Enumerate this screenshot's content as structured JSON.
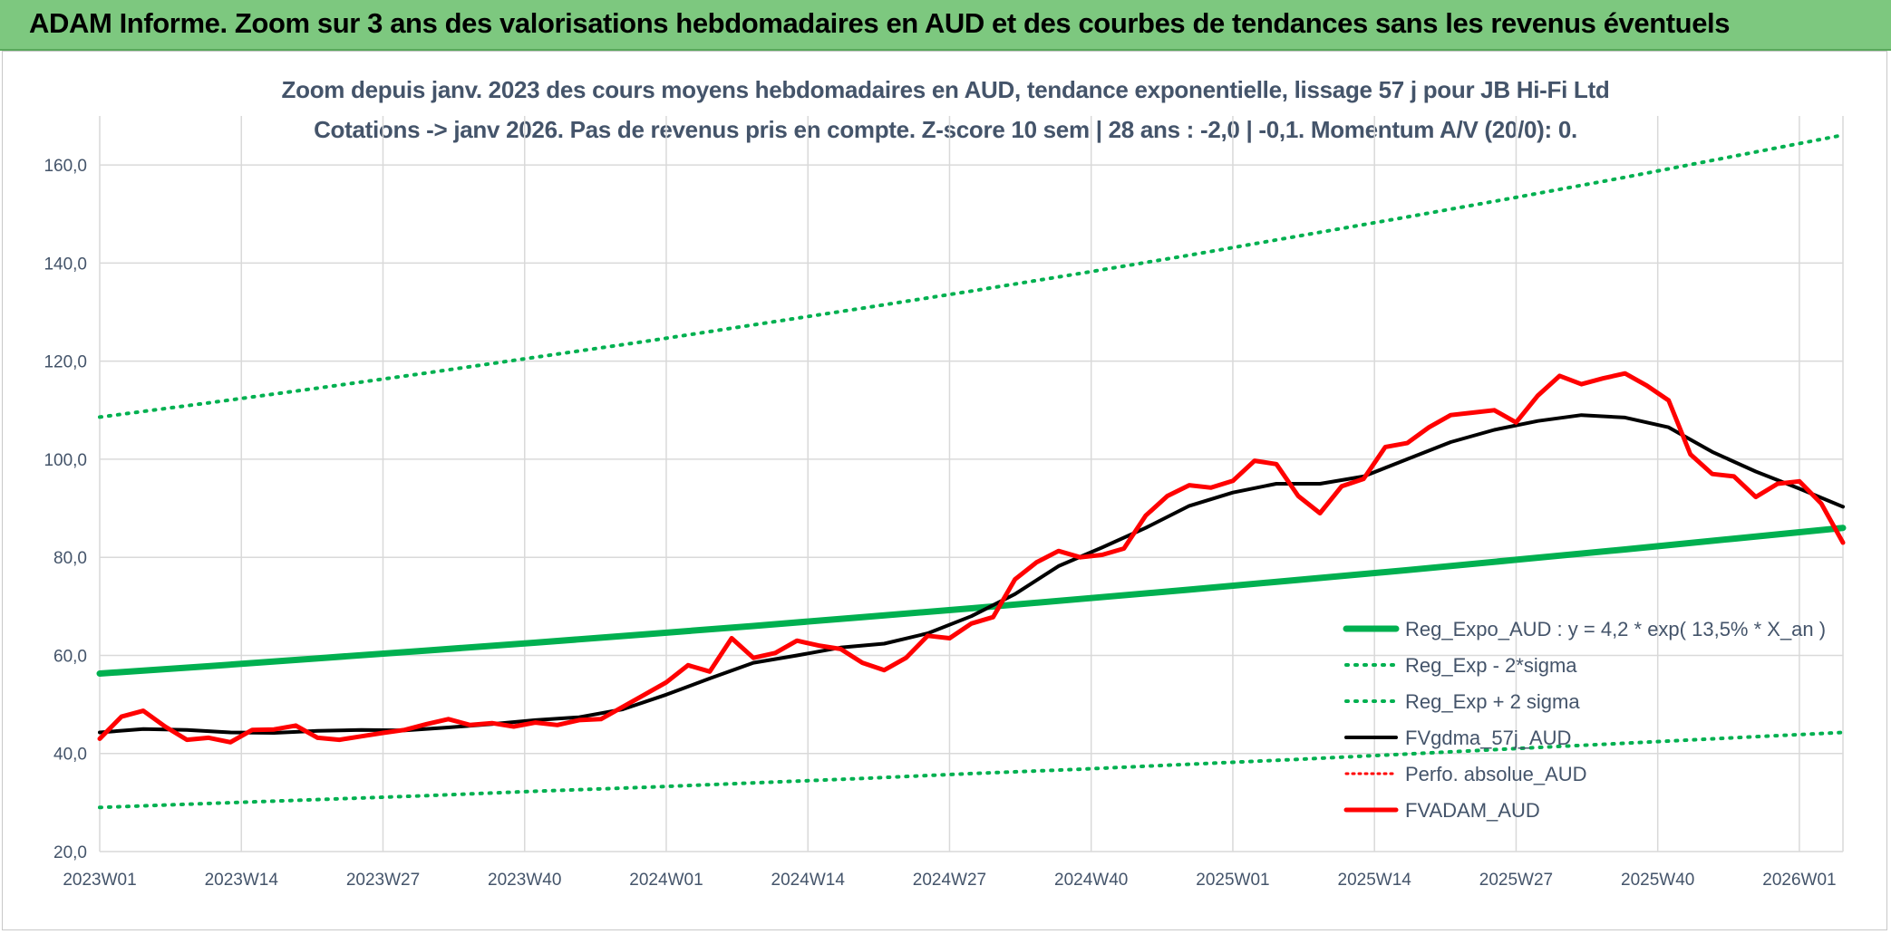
{
  "banner": {
    "title": "ADAM Informe. Zoom sur 3 ans des valorisations hebdomadaires en AUD et des courbes de tendances sans les revenus éventuels"
  },
  "chart_title": {
    "line1": "Zoom depuis janv. 2023 des cours moyens hebdomadaires en AUD, tendance exponentielle, lissage 57 j pour JB Hi-Fi Ltd",
    "line2": "Cotations -> janv 2026. Pas de revenus pris en compte. Z-score 10 sem | 28 ans : -2,0 | -0,1. Momentum A/V (20/0): 0."
  },
  "colors": {
    "trend": "#00b050",
    "band": "#00b050",
    "smooth": "#000000",
    "price": "#ff0000",
    "perfo": "#ff0000",
    "grid": "#d9d9d9",
    "text": "#44546a"
  },
  "chart_data": {
    "type": "line",
    "x_tick_labels": [
      "2023W01",
      "2023W14",
      "2023W27",
      "2023W40",
      "2024W01",
      "2024W14",
      "2024W27",
      "2024W40",
      "2025W01",
      "2025W14",
      "2025W27",
      "2025W40",
      "2026W01"
    ],
    "x_tick_weeks": [
      0,
      13,
      26,
      39,
      52,
      65,
      78,
      91,
      104,
      117,
      130,
      143,
      156
    ],
    "x_range": [
      0,
      160
    ],
    "y_tick_labels": [
      "20,0",
      "40,0",
      "60,0",
      "80,0",
      "100,0",
      "120,0",
      "140,0",
      "160,0"
    ],
    "y_ticks": [
      20,
      40,
      60,
      80,
      100,
      120,
      140,
      160
    ],
    "ylim": [
      20,
      170
    ],
    "grid": true,
    "legend_position": "bottom-right",
    "series": [
      {
        "name": "Reg_Expo_AUD : y = 4,2 * exp( 13,5% *  X_an )",
        "style": "trend",
        "x": [
          0,
          10,
          20,
          30,
          40,
          50,
          60,
          70,
          80,
          90,
          100,
          110,
          120,
          130,
          140,
          150,
          160
        ],
        "y": [
          56.3,
          57.8,
          59.4,
          61.0,
          62.6,
          64.3,
          66.0,
          67.8,
          69.6,
          71.5,
          73.4,
          75.4,
          77.4,
          79.5,
          81.6,
          83.8,
          86.0
        ]
      },
      {
        "name": "Reg_Exp - 2*sigma",
        "style": "band",
        "x": [
          0,
          10,
          20,
          30,
          40,
          50,
          60,
          70,
          80,
          90,
          100,
          110,
          120,
          130,
          140,
          150,
          160
        ],
        "y": [
          29.0,
          29.8,
          30.6,
          31.4,
          32.3,
          33.1,
          34.0,
          34.9,
          35.9,
          36.8,
          37.8,
          38.8,
          39.9,
          41.0,
          42.1,
          43.2,
          44.3
        ]
      },
      {
        "name": "Reg_Exp + 2 sigma",
        "style": "band",
        "x": [
          0,
          10,
          20,
          30,
          40,
          50,
          60,
          70,
          80,
          90,
          100,
          110,
          120,
          130,
          140,
          150,
          160
        ],
        "y": [
          108.6,
          111.5,
          114.5,
          117.6,
          120.8,
          124.0,
          127.4,
          130.8,
          134.3,
          137.9,
          141.6,
          145.5,
          149.4,
          153.4,
          157.5,
          161.8,
          166.1
        ]
      },
      {
        "name": "FVgdma_57j_AUD",
        "style": "smooth",
        "x": [
          0,
          4,
          8,
          12,
          16,
          20,
          24,
          28,
          32,
          36,
          40,
          44,
          48,
          52,
          56,
          60,
          64,
          68,
          72,
          76,
          80,
          84,
          88,
          92,
          96,
          100,
          104,
          108,
          112,
          116,
          120,
          124,
          128,
          132,
          136,
          140,
          144,
          148,
          152,
          156,
          160
        ],
        "y": [
          44.3,
          45.0,
          44.8,
          44.3,
          44.2,
          44.6,
          44.8,
          44.7,
          45.3,
          46.0,
          46.8,
          47.4,
          49.0,
          52.0,
          55.3,
          58.5,
          60.0,
          61.6,
          62.4,
          64.5,
          68.0,
          72.5,
          78.2,
          82.0,
          86.0,
          90.5,
          93.2,
          95.0,
          95.0,
          96.5,
          100.0,
          103.5,
          106.0,
          107.8,
          109.0,
          108.5,
          106.5,
          101.5,
          97.5,
          94.0,
          90.3
        ]
      },
      {
        "name": "Perfo. absolue_AUD",
        "style": "perfo",
        "x": [],
        "y": []
      },
      {
        "name": "FVADAM_AUD",
        "style": "price",
        "x": [
          0,
          2,
          4,
          6,
          8,
          10,
          12,
          14,
          16,
          18,
          20,
          22,
          24,
          26,
          28,
          30,
          32,
          34,
          36,
          38,
          40,
          42,
          44,
          46,
          48,
          50,
          52,
          54,
          56,
          58,
          60,
          62,
          64,
          66,
          68,
          70,
          72,
          74,
          76,
          78,
          80,
          82,
          84,
          86,
          88,
          90,
          92,
          94,
          96,
          98,
          100,
          102,
          104,
          106,
          108,
          110,
          112,
          114,
          116,
          118,
          120,
          122,
          124,
          126,
          128,
          130,
          132,
          134,
          136,
          138,
          140,
          142,
          144,
          146,
          148,
          150,
          152,
          154,
          156,
          158,
          160
        ],
        "y": [
          43.0,
          47.5,
          48.7,
          45.5,
          42.8,
          43.2,
          42.3,
          44.8,
          44.9,
          45.7,
          43.2,
          42.8,
          43.5,
          44.2,
          44.8,
          46.0,
          47.0,
          45.8,
          46.2,
          45.5,
          46.3,
          45.8,
          46.8,
          47.0,
          49.5,
          52.0,
          54.5,
          58.0,
          56.7,
          63.5,
          59.5,
          60.5,
          63.0,
          62.0,
          61.3,
          58.5,
          57.0,
          59.5,
          64.0,
          63.5,
          66.5,
          67.8,
          75.5,
          79.0,
          81.3,
          80.0,
          80.5,
          81.8,
          88.5,
          92.5,
          94.7,
          94.2,
          95.6,
          99.7,
          99.0,
          92.5,
          89.0,
          94.5,
          96.0,
          102.5,
          103.3,
          106.5,
          109.0,
          109.5,
          110.0,
          107.5,
          113.0,
          117.0,
          115.3,
          116.5,
          117.5,
          115.0,
          112.0,
          101.0,
          97.0,
          96.5,
          92.3,
          95.0,
          95.5,
          91.0,
          83.0
        ]
      }
    ]
  }
}
